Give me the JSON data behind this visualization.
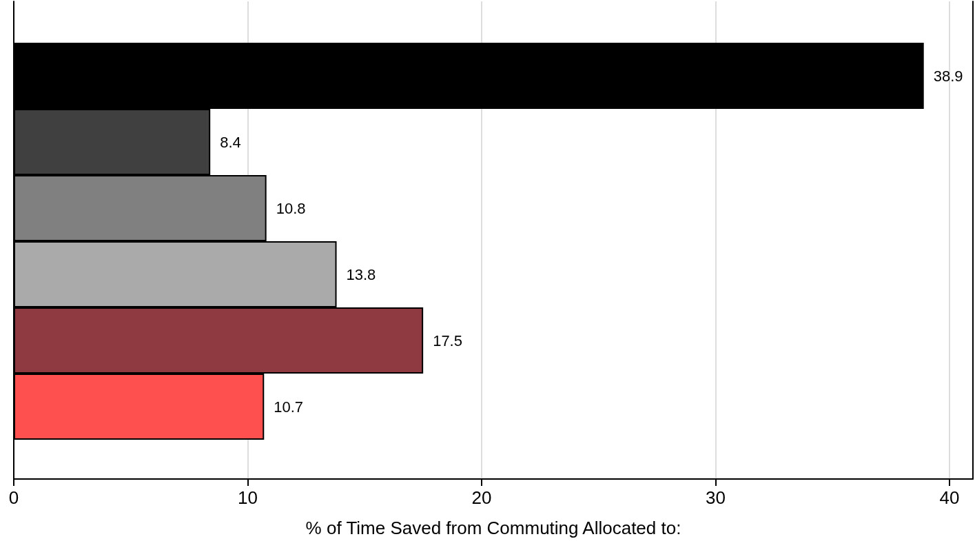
{
  "chart_data": {
    "type": "bar",
    "orientation": "horizontal",
    "xlabel": "% of Time Saved from Commuting Allocated to:",
    "categories": [
      null,
      null,
      null,
      null,
      null,
      null
    ],
    "values": [
      38.9,
      8.4,
      10.8,
      13.8,
      17.5,
      10.7
    ],
    "colors": [
      "#000000",
      "#404040",
      "#808080",
      "#aaaaaa",
      "#8e3a40",
      "#ff5050"
    ],
    "xlim": [
      0,
      41
    ],
    "xticks": [
      0,
      10,
      20,
      30,
      40
    ],
    "grid": "x",
    "data_labels": true
  }
}
